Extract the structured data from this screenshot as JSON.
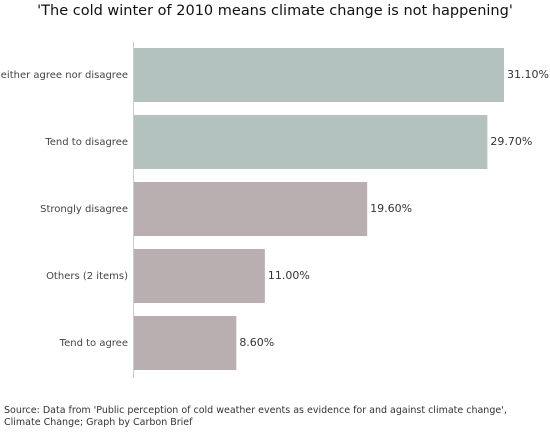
{
  "chart_data": {
    "type": "bar",
    "orientation": "horizontal",
    "title": "'The cold winter of 2010 means climate change is not happening'",
    "categories": [
      "Neither agree nor disagree",
      "Tend to disagree",
      "Strongly disagree",
      "Others (2 items)",
      "Tend to agree"
    ],
    "values": [
      31.1,
      29.7,
      19.6,
      11.0,
      8.6
    ],
    "value_labels": [
      "31.10%",
      "29.70%",
      "19.60%",
      "11.00%",
      "8.60%"
    ],
    "colors": [
      "#b3c1bf",
      "#b3c1bf",
      "#b9aeb0",
      "#b9aeb0",
      "#b9aeb0"
    ],
    "xlim": [
      0,
      31.1
    ],
    "grid": false,
    "legend": "none"
  },
  "source": "Source: Data from 'Public perception of cold weather events as evidence for and against climate change', Climate Change; Graph by Carbon Brief"
}
